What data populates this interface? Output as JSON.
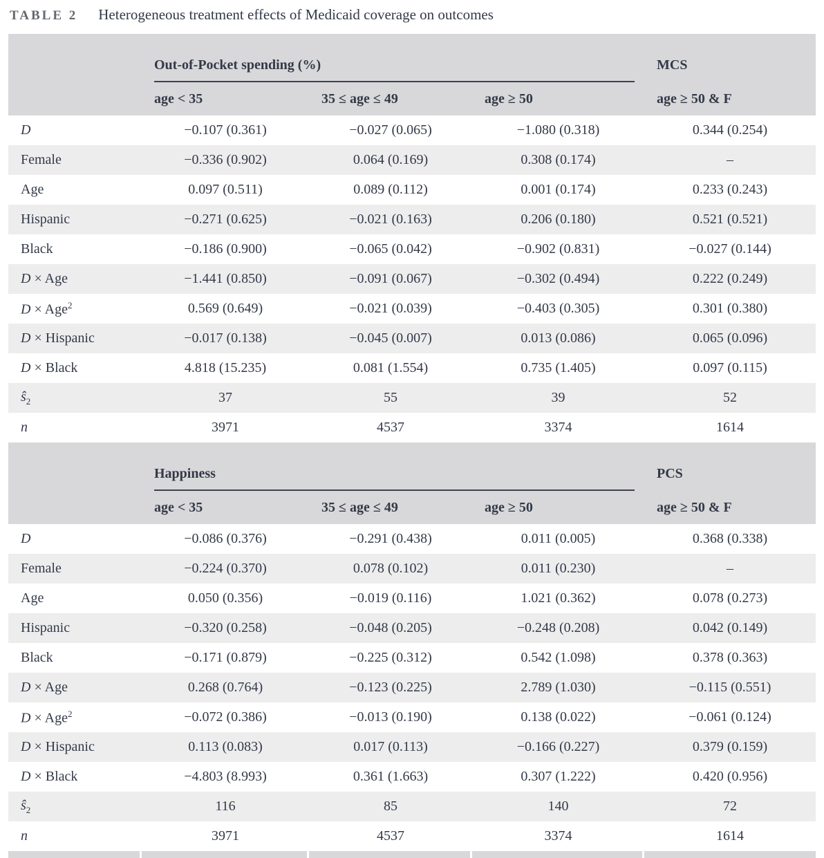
{
  "title": {
    "label": "TABLE 2",
    "text": "Heterogeneous treatment effects of Medicaid coverage on outcomes"
  },
  "panels": [
    {
      "group_header": "Out-of-Pocket spending (%)",
      "extra_header": "MCS",
      "columns": [
        "age < 35",
        "35 ≤ age ≤ 49",
        "age ≥ 50",
        "age ≥ 50 & F"
      ],
      "rows": [
        {
          "label": "D",
          "values": [
            "−0.107 (0.361)",
            "−0.027 (0.065)",
            "−1.080 (0.318)",
            "0.344 (0.254)"
          ]
        },
        {
          "label": "Female",
          "values": [
            "−0.336 (0.902)",
            "0.064 (0.169)",
            "0.308 (0.174)",
            "–"
          ]
        },
        {
          "label": "Age",
          "values": [
            "0.097 (0.511)",
            "0.089 (0.112)",
            "0.001 (0.174)",
            "0.233 (0.243)"
          ]
        },
        {
          "label": "Hispanic",
          "values": [
            "−0.271 (0.625)",
            "−0.021 (0.163)",
            "0.206 (0.180)",
            "0.521 (0.521)"
          ]
        },
        {
          "label": "Black",
          "values": [
            "−0.186 (0.900)",
            "−0.065 (0.042)",
            "−0.902 (0.831)",
            "−0.027 (0.144)"
          ]
        },
        {
          "label": "D × Age",
          "values": [
            "−1.441 (0.850)",
            "−0.091 (0.067)",
            "−0.302 (0.494)",
            "0.222 (0.249)"
          ]
        },
        {
          "label": "D × Age²",
          "values": [
            "0.569 (0.649)",
            "−0.021 (0.039)",
            "−0.403 (0.305)",
            "0.301 (0.380)"
          ]
        },
        {
          "label": "D × Hispanic",
          "values": [
            "−0.017 (0.138)",
            "−0.045 (0.007)",
            "0.013 (0.086)",
            "0.065 (0.096)"
          ]
        },
        {
          "label": "D × Black",
          "values": [
            "4.818 (15.235)",
            "0.081 (1.554)",
            "0.735 (1.405)",
            "0.097 (0.115)"
          ]
        },
        {
          "label": "ŝ₂",
          "values": [
            "37",
            "55",
            "39",
            "52"
          ]
        },
        {
          "label": "n",
          "values": [
            "3971",
            "4537",
            "3374",
            "1614"
          ]
        }
      ]
    },
    {
      "group_header": "Happiness",
      "extra_header": "PCS",
      "columns": [
        "age < 35",
        "35 ≤ age ≤ 49",
        "age ≥ 50",
        "age ≥ 50 & F"
      ],
      "rows": [
        {
          "label": "D",
          "values": [
            "−0.086 (0.376)",
            "−0.291 (0.438)",
            "0.011 (0.005)",
            "0.368 (0.338)"
          ]
        },
        {
          "label": "Female",
          "values": [
            "−0.224 (0.370)",
            "0.078 (0.102)",
            "0.011 (0.230)",
            "–"
          ]
        },
        {
          "label": "Age",
          "values": [
            "0.050 (0.356)",
            "−0.019 (0.116)",
            "1.021 (0.362)",
            "0.078 (0.273)"
          ]
        },
        {
          "label": "Hispanic",
          "values": [
            "−0.320 (0.258)",
            "−0.048 (0.205)",
            "−0.248 (0.208)",
            "0.042 (0.149)"
          ]
        },
        {
          "label": "Black",
          "values": [
            "−0.171 (0.879)",
            "−0.225 (0.312)",
            "0.542 (1.098)",
            "0.378 (0.363)"
          ]
        },
        {
          "label": "D × Age",
          "values": [
            "0.268 (0.764)",
            "−0.123 (0.225)",
            "2.789 (1.030)",
            "−0.115 (0.551)"
          ]
        },
        {
          "label": "D × Age²",
          "values": [
            "−0.072 (0.386)",
            "−0.013 (0.190)",
            "0.138 (0.022)",
            "−0.061 (0.124)"
          ]
        },
        {
          "label": "D × Hispanic",
          "values": [
            "0.113 (0.083)",
            "0.017 (0.113)",
            "−0.166 (0.227)",
            "0.379 (0.159)"
          ]
        },
        {
          "label": "D × Black",
          "values": [
            "−4.803 (8.993)",
            "0.361 (1.663)",
            "0.307 (1.222)",
            "0.420 (0.956)"
          ]
        },
        {
          "label": "ŝ₂",
          "values": [
            "116",
            "85",
            "140",
            "72"
          ]
        },
        {
          "label": "n",
          "values": [
            "3971",
            "4537",
            "3374",
            "1614"
          ]
        }
      ]
    }
  ]
}
